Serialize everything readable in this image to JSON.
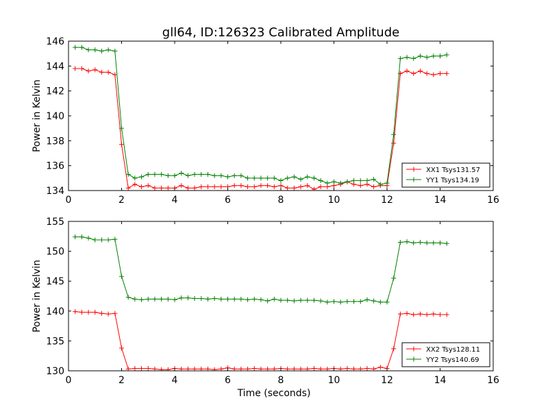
{
  "chart_data": [
    {
      "type": "line",
      "title": "gll64, ID:126323 Calibrated Amplitude",
      "xlabel": "",
      "ylabel": "Power in Kelvin",
      "xlim": [
        0,
        16
      ],
      "ylim": [
        134,
        146
      ],
      "xticks": [
        "0",
        "2",
        "4",
        "6",
        "8",
        "10",
        "12",
        "14",
        "16"
      ],
      "yticks": [
        "134",
        "136",
        "138",
        "140",
        "142",
        "144",
        "146"
      ],
      "legend_position": "lower-right",
      "grid": false,
      "x": [
        0.25,
        0.5,
        0.75,
        1.0,
        1.25,
        1.5,
        1.75,
        2.0,
        2.25,
        2.5,
        2.75,
        3.0,
        3.25,
        3.5,
        3.75,
        4.0,
        4.25,
        4.5,
        4.75,
        5.0,
        5.25,
        5.5,
        5.75,
        6.0,
        6.25,
        6.5,
        6.75,
        7.0,
        7.25,
        7.5,
        7.75,
        8.0,
        8.25,
        8.5,
        8.75,
        9.0,
        9.25,
        9.5,
        9.75,
        10.0,
        10.25,
        10.5,
        10.75,
        11.0,
        11.25,
        11.5,
        11.75,
        12.0,
        12.25,
        12.5,
        12.75,
        13.0,
        13.25,
        13.5,
        13.75,
        14.0,
        14.25
      ],
      "series": [
        {
          "name": "XX1 Tsys131.57",
          "color": "#ff0000",
          "values": [
            143.8,
            143.8,
            143.6,
            143.7,
            143.5,
            143.5,
            143.3,
            137.7,
            134.2,
            134.5,
            134.3,
            134.4,
            134.2,
            134.2,
            134.2,
            134.2,
            134.4,
            134.2,
            134.2,
            134.3,
            134.3,
            134.3,
            134.3,
            134.3,
            134.4,
            134.4,
            134.3,
            134.3,
            134.4,
            134.4,
            134.3,
            134.4,
            134.2,
            134.2,
            134.3,
            134.4,
            134.1,
            134.3,
            134.3,
            134.4,
            134.5,
            134.7,
            134.5,
            134.4,
            134.5,
            134.3,
            134.4,
            134.4,
            137.8,
            143.4,
            143.6,
            143.4,
            143.6,
            143.4,
            143.3,
            143.4,
            143.4
          ]
        },
        {
          "name": "YY1 Tsys134.19",
          "color": "#008000",
          "values": [
            145.5,
            145.5,
            145.3,
            145.3,
            145.2,
            145.3,
            145.2,
            139.0,
            135.3,
            135.0,
            135.1,
            135.3,
            135.3,
            135.3,
            135.2,
            135.2,
            135.4,
            135.2,
            135.3,
            135.3,
            135.3,
            135.2,
            135.2,
            135.1,
            135.2,
            135.2,
            135.0,
            135.0,
            135.0,
            135.0,
            135.0,
            134.8,
            135.0,
            135.1,
            134.9,
            135.1,
            135.0,
            134.8,
            134.6,
            134.7,
            134.6,
            134.7,
            134.8,
            134.8,
            134.8,
            134.9,
            134.5,
            134.6,
            138.5,
            144.6,
            144.7,
            144.6,
            144.8,
            144.7,
            144.8,
            144.8,
            144.9
          ]
        }
      ]
    },
    {
      "type": "line",
      "title": "",
      "xlabel": "Time (seconds)",
      "ylabel": "Power in Kelvin",
      "xlim": [
        0,
        16
      ],
      "ylim": [
        130,
        155
      ],
      "xticks": [
        "0",
        "2",
        "4",
        "6",
        "8",
        "10",
        "12",
        "14",
        "16"
      ],
      "yticks": [
        "130",
        "135",
        "140",
        "145",
        "150",
        "155"
      ],
      "legend_position": "lower-right",
      "grid": false,
      "x": [
        0.25,
        0.5,
        0.75,
        1.0,
        1.25,
        1.5,
        1.75,
        2.0,
        2.25,
        2.5,
        2.75,
        3.0,
        3.25,
        3.5,
        3.75,
        4.0,
        4.25,
        4.5,
        4.75,
        5.0,
        5.25,
        5.5,
        5.75,
        6.0,
        6.25,
        6.5,
        6.75,
        7.0,
        7.25,
        7.5,
        7.75,
        8.0,
        8.25,
        8.5,
        8.75,
        9.0,
        9.25,
        9.5,
        9.75,
        10.0,
        10.25,
        10.5,
        10.75,
        11.0,
        11.25,
        11.5,
        11.75,
        12.0,
        12.25,
        12.5,
        12.75,
        13.0,
        13.25,
        13.5,
        13.75,
        14.0,
        14.25
      ],
      "series": [
        {
          "name": "XX2 Tsys128.11",
          "color": "#ff0000",
          "values": [
            139.9,
            139.8,
            139.8,
            139.8,
            139.6,
            139.5,
            139.6,
            133.8,
            130.3,
            130.4,
            130.4,
            130.4,
            130.3,
            130.2,
            130.2,
            130.4,
            130.3,
            130.3,
            130.3,
            130.3,
            130.3,
            130.2,
            130.3,
            130.5,
            130.3,
            130.3,
            130.3,
            130.4,
            130.3,
            130.3,
            130.3,
            130.4,
            130.3,
            130.3,
            130.3,
            130.3,
            130.4,
            130.3,
            130.3,
            130.4,
            130.3,
            130.4,
            130.3,
            130.3,
            130.4,
            130.3,
            130.6,
            130.4,
            133.7,
            139.5,
            139.6,
            139.4,
            139.5,
            139.4,
            139.5,
            139.4,
            139.4
          ]
        },
        {
          "name": "YY2 Tsys140.69",
          "color": "#008000",
          "values": [
            152.4,
            152.4,
            152.2,
            151.9,
            151.9,
            151.9,
            152.0,
            145.8,
            142.3,
            142.0,
            141.9,
            142.0,
            142.0,
            142.0,
            142.0,
            141.9,
            142.2,
            142.2,
            142.1,
            142.1,
            142.0,
            142.1,
            142.0,
            142.0,
            142.0,
            142.0,
            141.9,
            142.0,
            141.9,
            141.7,
            142.0,
            141.8,
            141.8,
            141.7,
            141.8,
            141.8,
            141.8,
            141.7,
            141.5,
            141.6,
            141.5,
            141.6,
            141.6,
            141.6,
            141.9,
            141.7,
            141.5,
            141.5,
            145.5,
            151.5,
            151.6,
            151.4,
            151.5,
            151.4,
            151.4,
            151.4,
            151.3
          ]
        }
      ]
    }
  ]
}
